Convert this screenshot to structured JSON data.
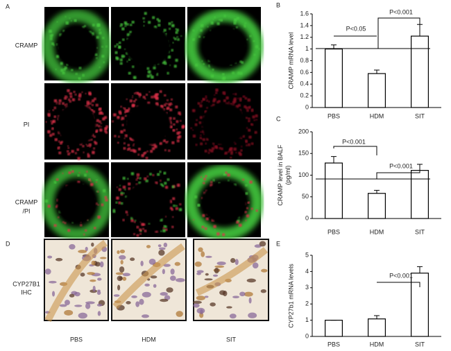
{
  "figure": {
    "panel_a": "A",
    "panel_d": "D",
    "row_labels": [
      [
        "CRAMP"
      ],
      [
        "PI"
      ],
      [
        "CRAMP",
        "/PI"
      ]
    ],
    "ihc_label": [
      "CYP27B1",
      "IHC"
    ],
    "column_labels": [
      "PBS",
      "HDM",
      "SIT"
    ]
  },
  "chart_data": [
    {
      "type": "bar",
      "panel": "B",
      "ylabel": [
        "CRAMP mRNA  level"
      ],
      "categories": [
        "PBS",
        "HDM",
        "SIT"
      ],
      "values": [
        1.0,
        0.58,
        1.22
      ],
      "errors": [
        0.07,
        0.06,
        0.2
      ],
      "color": "#ffffff",
      "ylim": [
        0,
        1.6
      ],
      "yticks": [
        0,
        0.2,
        0.4,
        0.6,
        0.8,
        1,
        1.2,
        1.4,
        1.6
      ],
      "annotations": [
        "P<0.05",
        "P<0.001"
      ]
    },
    {
      "type": "bar",
      "panel": "C",
      "ylabel": [
        "CRAMP level in BALF",
        "(pg/ml)"
      ],
      "categories": [
        "PBS",
        "HDM",
        "SIT"
      ],
      "values": [
        128,
        58,
        111
      ],
      "errors": [
        15,
        7,
        14
      ],
      "color": "#ffffff",
      "ylim": [
        0,
        200
      ],
      "yticks": [
        0,
        50,
        100,
        150,
        200
      ],
      "annotations": [
        "P<0.001",
        "P<0.001"
      ]
    },
    {
      "type": "bar",
      "panel": "E",
      "ylabel": [
        "CYP27b1 mRNA levels"
      ],
      "categories": [
        "PBS",
        "HDM",
        "SIT"
      ],
      "values": [
        1.0,
        1.08,
        3.9
      ],
      "errors": [
        0,
        0.2,
        0.4
      ],
      "color": "#ffffff",
      "ylim": [
        0,
        5
      ],
      "yticks": [
        0,
        1,
        2,
        3,
        4,
        5
      ],
      "annotations": [
        "P<0.001"
      ]
    }
  ]
}
